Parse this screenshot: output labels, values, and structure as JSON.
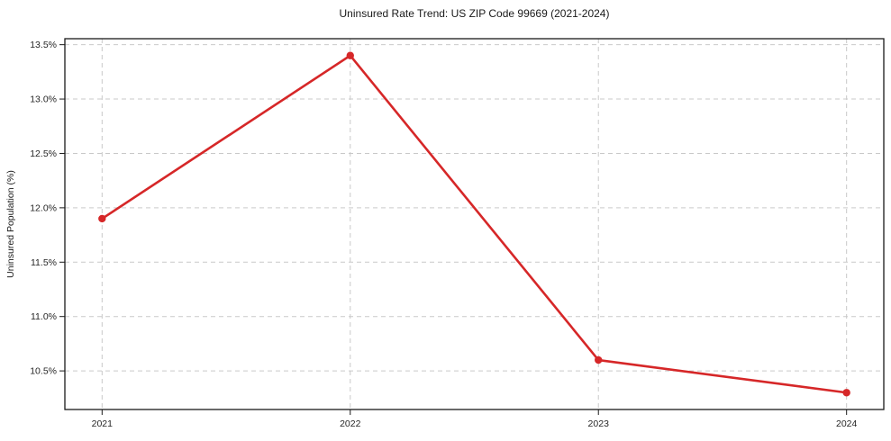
{
  "page": {
    "background": "#ffffff"
  },
  "chart_data": {
    "type": "line",
    "title": "Uninsured Rate Trend: US ZIP Code 99669 (2021-2024)",
    "xlabel": "",
    "ylabel": "Uninsured Population (%)",
    "x": [
      2021,
      2022,
      2023,
      2024
    ],
    "x_tick_labels": [
      "2021",
      "2022",
      "2023",
      "2024"
    ],
    "series": [
      {
        "name": "uninsured-rate",
        "values": [
          11.9,
          13.4,
          10.6,
          10.3
        ],
        "color": "#d62728",
        "marker": "circle"
      }
    ],
    "yticks": [
      10.5,
      11.0,
      11.5,
      12.0,
      12.5,
      13.0,
      13.5
    ],
    "y_tick_labels": [
      "10.5%",
      "11.0%",
      "11.5%",
      "12.0%",
      "12.5%",
      "13.0%",
      "13.5%"
    ],
    "ylim": [
      10.145,
      13.555
    ],
    "xlim": [
      2020.85,
      2024.15
    ],
    "grid": true,
    "grid_style": "dashed",
    "grid_color": "#c9c9c9",
    "axis_color": "#1a1a1a",
    "tick_label_color": "#262626",
    "legend": "none"
  }
}
